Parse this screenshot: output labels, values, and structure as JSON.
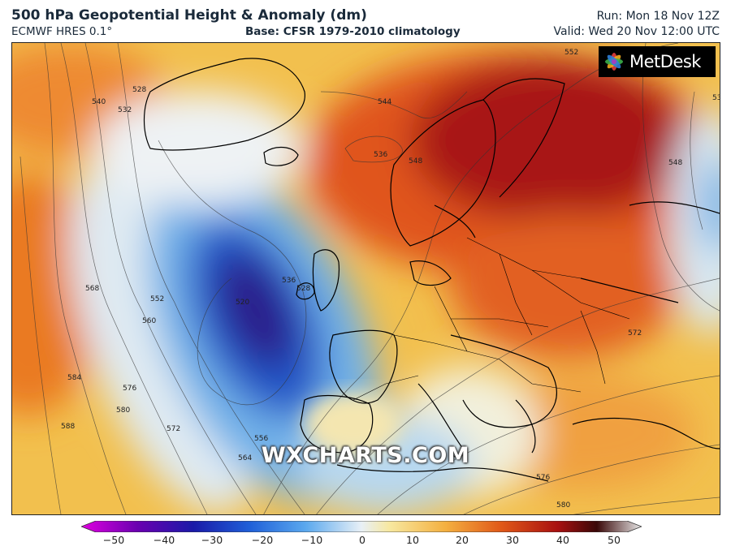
{
  "header": {
    "title": "500 hPa Geopotential Height & Anomaly (dm)",
    "model": "ECMWF HRES 0.1°",
    "base": "Base: CFSR 1979-2010 climatology",
    "run": "Run: Mon 18 Nov 12Z",
    "valid": "Valid: Wed 20 Nov 12:00 UTC"
  },
  "branding": {
    "logo_text": "MetDesk",
    "watermark": "WXCHARTS.COM"
  },
  "contour_labels": [
    "552",
    "544",
    "536",
    "548",
    "536",
    "540",
    "532",
    "528",
    "520",
    "536",
    "548",
    "528",
    "568",
    "552",
    "560",
    "584",
    "576",
    "580",
    "588",
    "572",
    "556",
    "564",
    "572",
    "576",
    "580"
  ],
  "colorbar": {
    "ticks": [
      "−50",
      "−40",
      "−30",
      "−20",
      "−10",
      "0",
      "10",
      "20",
      "30",
      "40",
      "50"
    ],
    "colors": [
      "#e000e0",
      "#6a00b0",
      "#1a1aa8",
      "#1f5fd8",
      "#5aa8ee",
      "#e8f0f6",
      "#f7e8a0",
      "#f4b040",
      "#e05818",
      "#a81010",
      "#3a0808",
      "#e8e8e8"
    ]
  }
}
